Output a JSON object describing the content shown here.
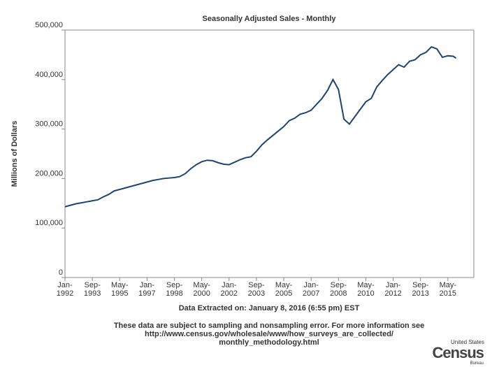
{
  "chart_data": {
    "type": "line",
    "title": "Seasonally Adjusted Sales - Monthly",
    "y_label": "Millions of Dollars",
    "x_label": "Data Extracted on: January 8, 2016 (6:55 pm) EST",
    "footnote": [
      "These data are subject to sampling and nonsampling error. For more information see",
      "http://www.census.gov/wholesale/www/how_surveys_are_collected/",
      "monthly_methodology.html"
    ],
    "logo": [
      "United States",
      "Census",
      "Bureau"
    ],
    "xlim": [
      "1992-01",
      "2016-12"
    ],
    "xticks": [
      {
        "value": "1992-01",
        "label": "Jan-1992"
      },
      {
        "value": "1993-09",
        "label": "Sep-1993"
      },
      {
        "value": "1995-05",
        "label": "May-1995"
      },
      {
        "value": "1997-01",
        "label": "Jan-1997"
      },
      {
        "value": "1998-09",
        "label": "Sep-1998"
      },
      {
        "value": "2000-05",
        "label": "May-2000"
      },
      {
        "value": "2002-01",
        "label": "Jan-2002"
      },
      {
        "value": "2003-09",
        "label": "Sep-2003"
      },
      {
        "value": "2005-05",
        "label": "May-2005"
      },
      {
        "value": "2007-01",
        "label": "Jan-2007"
      },
      {
        "value": "2008-09",
        "label": "Sep-2008"
      },
      {
        "value": "2010-05",
        "label": "May-2010"
      },
      {
        "value": "2012-01",
        "label": "Jan-2012"
      },
      {
        "value": "2013-09",
        "label": "Sep-2013"
      },
      {
        "value": "2015-05",
        "label": "May-2015"
      }
    ],
    "ylim": [
      0,
      500000
    ],
    "yticks": [
      0,
      {
        "value": 100000,
        "label": "100,000"
      },
      {
        "value": 200000,
        "label": "200,000"
      },
      {
        "value": 300000,
        "label": "300,000"
      },
      {
        "value": 400000,
        "label": "400,000"
      },
      {
        "value": 500000,
        "label": "500,000"
      }
    ],
    "color": "#1f4470",
    "x": [
      "1992-01",
      "1992-05",
      "1992-09",
      "1993-01",
      "1993-05",
      "1993-09",
      "1994-01",
      "1994-05",
      "1994-09",
      "1995-01",
      "1995-05",
      "1995-09",
      "1996-01",
      "1996-05",
      "1996-09",
      "1997-01",
      "1997-05",
      "1997-09",
      "1998-01",
      "1998-05",
      "1998-09",
      "1999-01",
      "1999-05",
      "1999-09",
      "2000-01",
      "2000-05",
      "2000-09",
      "2001-01",
      "2001-05",
      "2001-09",
      "2002-01",
      "2002-05",
      "2002-09",
      "2003-01",
      "2003-05",
      "2003-09",
      "2004-01",
      "2004-05",
      "2004-09",
      "2005-01",
      "2005-05",
      "2005-09",
      "2006-01",
      "2006-05",
      "2006-09",
      "2007-01",
      "2007-05",
      "2007-09",
      "2008-01",
      "2008-05",
      "2008-09",
      "2009-01",
      "2009-05",
      "2009-09",
      "2010-01",
      "2010-05",
      "2010-09",
      "2011-01",
      "2011-05",
      "2011-09",
      "2012-01",
      "2012-05",
      "2012-09",
      "2013-01",
      "2013-05",
      "2013-09",
      "2014-01",
      "2014-05",
      "2014-09",
      "2015-01",
      "2015-05",
      "2015-09",
      "2015-11"
    ],
    "values": [
      143000,
      146000,
      149000,
      151000,
      153000,
      155000,
      157000,
      163000,
      168000,
      175000,
      178000,
      181000,
      184000,
      187000,
      190000,
      193000,
      196000,
      198000,
      200000,
      201000,
      202000,
      204000,
      210000,
      220000,
      228000,
      234000,
      237000,
      236000,
      232000,
      229000,
      228000,
      233000,
      238000,
      242000,
      244000,
      255000,
      268000,
      278000,
      287000,
      296000,
      305000,
      317000,
      322000,
      330000,
      333000,
      338000,
      350000,
      362000,
      378000,
      400000,
      380000,
      320000,
      310000,
      325000,
      340000,
      355000,
      362000,
      385000,
      398000,
      410000,
      420000,
      430000,
      425000,
      437000,
      440000,
      450000,
      455000,
      466000,
      462000,
      445000,
      448000,
      447000,
      443000
    ]
  }
}
